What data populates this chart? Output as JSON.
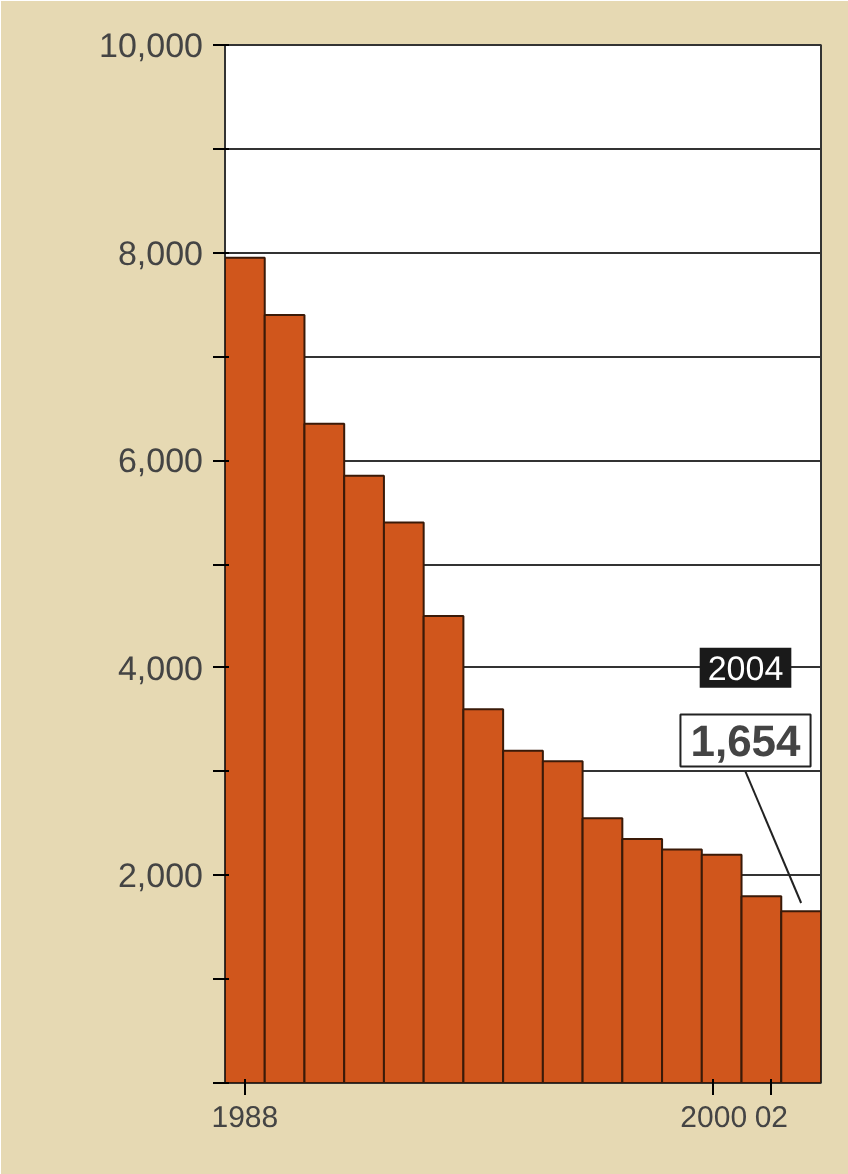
{
  "chart_data": {
    "type": "bar",
    "categories": [
      "1988",
      null,
      null,
      null,
      null,
      null,
      null,
      null,
      null,
      null,
      null,
      null,
      "2000",
      "02",
      null
    ],
    "values": [
      7950,
      7400,
      6350,
      5850,
      5400,
      4500,
      3600,
      3200,
      3100,
      2550,
      2350,
      2250,
      2200,
      1800,
      1654
    ],
    "color": "#d0561c",
    "value_labels": [
      null,
      null,
      null,
      null,
      null,
      null,
      null,
      null,
      null,
      null,
      null,
      null,
      null,
      null,
      "1,654"
    ],
    "annotations": [
      "2004"
    ],
    "ylim": [
      0,
      10000
    ],
    "yticks": [
      {
        "value": 0,
        "label": null
      },
      {
        "value": 1000,
        "label": null
      },
      "2,000",
      {
        "value": 3000,
        "label": null
      },
      "4,000",
      {
        "value": 5000,
        "label": null
      },
      "6,000",
      {
        "value": 7000,
        "label": null
      },
      "8,000",
      {
        "value": 9000,
        "label": null
      },
      "10,000"
    ],
    "grid": "y"
  }
}
